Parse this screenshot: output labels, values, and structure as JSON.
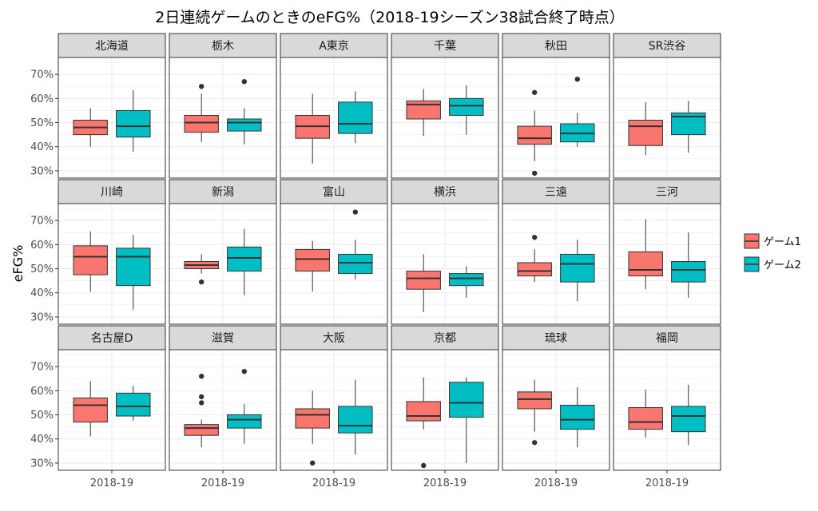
{
  "chart_data": {
    "type": "boxplot",
    "title": "2日連続ゲームのときのeFG%（2018-19シーズン38試合終了時点）",
    "xlabel": "",
    "ylabel": "eFG%",
    "x_tick": "2018-19",
    "ylim": [
      27,
      77
    ],
    "y_ticks": [
      30,
      40,
      50,
      60,
      70
    ],
    "y_tick_labels": [
      "30%",
      "40%",
      "50%",
      "60%",
      "70%"
    ],
    "grid": true,
    "legend_position": "right",
    "series": [
      {
        "name": "ゲーム1",
        "color": "#F8766D"
      },
      {
        "name": "ゲーム2",
        "color": "#00BFC4"
      }
    ],
    "panels": [
      {
        "team": "北海道",
        "boxes": [
          {
            "series": "ゲーム1",
            "min": 40,
            "q1": 45,
            "median": 48,
            "q3": 51,
            "max": 56,
            "outliers": []
          },
          {
            "series": "ゲーム2",
            "min": 38,
            "q1": 44,
            "median": 48.5,
            "q3": 55,
            "max": 63.5,
            "outliers": []
          }
        ]
      },
      {
        "team": "栃木",
        "boxes": [
          {
            "series": "ゲーム1",
            "min": 42,
            "q1": 46,
            "median": 50,
            "q3": 53,
            "max": 62,
            "outliers": [
              65
            ]
          },
          {
            "series": "ゲーム2",
            "min": 41,
            "q1": 46.5,
            "median": 50,
            "q3": 51.5,
            "max": 56,
            "outliers": [
              67
            ]
          }
        ]
      },
      {
        "team": "A東京",
        "boxes": [
          {
            "series": "ゲーム1",
            "min": 33,
            "q1": 43.5,
            "median": 48.5,
            "q3": 53,
            "max": 62,
            "outliers": []
          },
          {
            "series": "ゲーム2",
            "min": 41.5,
            "q1": 45.5,
            "median": 49.5,
            "q3": 58.5,
            "max": 63,
            "outliers": []
          }
        ]
      },
      {
        "team": "千葉",
        "boxes": [
          {
            "series": "ゲーム1",
            "min": 44.5,
            "q1": 51.5,
            "median": 57.5,
            "q3": 59,
            "max": 64,
            "outliers": []
          },
          {
            "series": "ゲーム2",
            "min": 45,
            "q1": 53,
            "median": 57,
            "q3": 60,
            "max": 65.5,
            "outliers": []
          }
        ]
      },
      {
        "team": "秋田",
        "boxes": [
          {
            "series": "ゲーム1",
            "min": 34,
            "q1": 41,
            "median": 43.5,
            "q3": 48.5,
            "max": 55,
            "outliers": [
              62.5,
              29
            ]
          },
          {
            "series": "ゲーム2",
            "min": 40,
            "q1": 42,
            "median": 45.5,
            "q3": 49.5,
            "max": 54,
            "outliers": [
              68
            ]
          }
        ]
      },
      {
        "team": "SR渋谷",
        "boxes": [
          {
            "series": "ゲーム1",
            "min": 36.5,
            "q1": 40.5,
            "median": 48.5,
            "q3": 51,
            "max": 58.5,
            "outliers": []
          },
          {
            "series": "ゲーム2",
            "min": 37.5,
            "q1": 45,
            "median": 52.5,
            "q3": 54,
            "max": 59,
            "outliers": []
          }
        ]
      },
      {
        "team": "川崎",
        "boxes": [
          {
            "series": "ゲーム1",
            "min": 40.5,
            "q1": 47.5,
            "median": 55,
            "q3": 59.5,
            "max": 65.5,
            "outliers": []
          },
          {
            "series": "ゲーム2",
            "min": 33,
            "q1": 43,
            "median": 55,
            "q3": 58.5,
            "max": 64,
            "outliers": []
          }
        ]
      },
      {
        "team": "新潟",
        "boxes": [
          {
            "series": "ゲーム1",
            "min": 48,
            "q1": 50,
            "median": 51.5,
            "q3": 53,
            "max": 56,
            "outliers": [
              44.5
            ]
          },
          {
            "series": "ゲーム2",
            "min": 39,
            "q1": 49,
            "median": 54.5,
            "q3": 59,
            "max": 66.5,
            "outliers": []
          }
        ]
      },
      {
        "team": "富山",
        "boxes": [
          {
            "series": "ゲーム1",
            "min": 40.5,
            "q1": 49,
            "median": 54,
            "q3": 58,
            "max": 61.5,
            "outliers": []
          },
          {
            "series": "ゲーム2",
            "min": 45.5,
            "q1": 48,
            "median": 52.5,
            "q3": 56,
            "max": 62,
            "outliers": [
              73.5
            ]
          }
        ]
      },
      {
        "team": "横浜",
        "boxes": [
          {
            "series": "ゲーム1",
            "min": 32,
            "q1": 41.5,
            "median": 46,
            "q3": 49,
            "max": 56,
            "outliers": []
          },
          {
            "series": "ゲーム2",
            "min": 38,
            "q1": 43,
            "median": 46,
            "q3": 48,
            "max": 51,
            "outliers": []
          }
        ]
      },
      {
        "team": "三遠",
        "boxes": [
          {
            "series": "ゲーム1",
            "min": 44.5,
            "q1": 47,
            "median": 49,
            "q3": 52.5,
            "max": 58,
            "outliers": [
              63
            ]
          },
          {
            "series": "ゲーム2",
            "min": 36.5,
            "q1": 44.5,
            "median": 52,
            "q3": 56,
            "max": 62,
            "outliers": []
          }
        ]
      },
      {
        "team": "三河",
        "boxes": [
          {
            "series": "ゲーム1",
            "min": 41.5,
            "q1": 47,
            "median": 49.5,
            "q3": 57,
            "max": 70.5,
            "outliers": []
          },
          {
            "series": "ゲーム2",
            "min": 38,
            "q1": 44.5,
            "median": 49.5,
            "q3": 53,
            "max": 65,
            "outliers": []
          }
        ]
      },
      {
        "team": "名古屋D",
        "boxes": [
          {
            "series": "ゲーム1",
            "min": 41,
            "q1": 47,
            "median": 54,
            "q3": 57,
            "max": 64,
            "outliers": []
          },
          {
            "series": "ゲーム2",
            "min": 47.5,
            "q1": 49.5,
            "median": 53.5,
            "q3": 59,
            "max": 62,
            "outliers": []
          }
        ]
      },
      {
        "team": "滋賀",
        "boxes": [
          {
            "series": "ゲーム1",
            "min": 36.5,
            "q1": 41.5,
            "median": 44.5,
            "q3": 46,
            "max": 48,
            "outliers": [
              66,
              57.5,
              55
            ]
          },
          {
            "series": "ゲーム2",
            "min": 38,
            "q1": 44.5,
            "median": 48,
            "q3": 50,
            "max": 54.5,
            "outliers": [
              68
            ]
          }
        ]
      },
      {
        "team": "大阪",
        "boxes": [
          {
            "series": "ゲーム1",
            "min": 38,
            "q1": 44.5,
            "median": 50,
            "q3": 52.5,
            "max": 60,
            "outliers": [
              30
            ]
          },
          {
            "series": "ゲーム2",
            "min": 33.5,
            "q1": 42.5,
            "median": 45.5,
            "q3": 53.5,
            "max": 64.5,
            "outliers": []
          }
        ]
      },
      {
        "team": "京都",
        "boxes": [
          {
            "series": "ゲーム1",
            "min": 44,
            "q1": 47.5,
            "median": 49.5,
            "q3": 55.5,
            "max": 65.5,
            "outliers": [
              29
            ]
          },
          {
            "series": "ゲーム2",
            "min": 30,
            "q1": 49,
            "median": 55,
            "q3": 63.5,
            "max": 65.5,
            "outliers": []
          }
        ]
      },
      {
        "team": "琉球",
        "boxes": [
          {
            "series": "ゲーム1",
            "min": 43,
            "q1": 52.5,
            "median": 56.5,
            "q3": 59.5,
            "max": 64.5,
            "outliers": [
              38.5
            ]
          },
          {
            "series": "ゲーム2",
            "min": 36.5,
            "q1": 44,
            "median": 48,
            "q3": 54,
            "max": 61.5,
            "outliers": []
          }
        ]
      },
      {
        "team": "福岡",
        "boxes": [
          {
            "series": "ゲーム1",
            "min": 40.5,
            "q1": 44,
            "median": 47,
            "q3": 53,
            "max": 60.5,
            "outliers": []
          },
          {
            "series": "ゲーム2",
            "min": 37.5,
            "q1": 43,
            "median": 49.5,
            "q3": 53.5,
            "max": 62.5,
            "outliers": []
          }
        ]
      }
    ]
  }
}
